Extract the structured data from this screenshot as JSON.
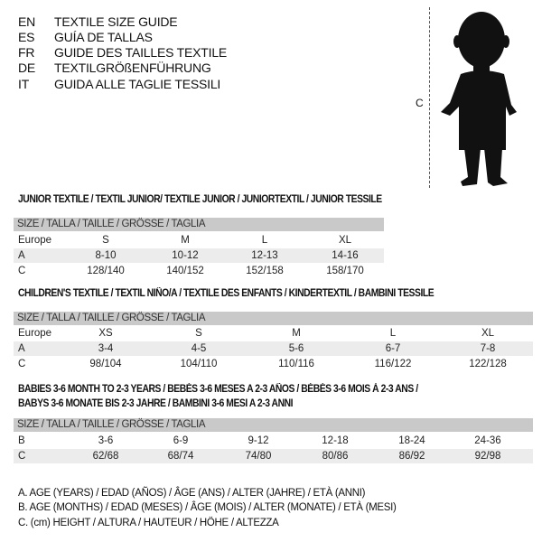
{
  "header_lines": [
    {
      "code": "EN",
      "text": "TEXTILE SIZE GUIDE"
    },
    {
      "code": "ES",
      "text": "GUÍA DE TALLAS"
    },
    {
      "code": "FR",
      "text": "GUIDE DES TAILLES TEXTILE"
    },
    {
      "code": "DE",
      "text": "TEXTILGRÖßENFÜHRUNG"
    },
    {
      "code": "IT",
      "text": "GUIDA ALLE TAGLIE TESSILI"
    }
  ],
  "figure": {
    "height_label": "C",
    "icon": "child-silhouette"
  },
  "junior": {
    "title": "JUNIOR TEXTILE / TEXTIL JUNIOR/ TEXTILE JUNIOR / JUNIORTEXTIL / JUNIOR TESSILE",
    "header": "SIZE / TALLA / TAILLE / GRÖSSE / TAGLIA",
    "rows": [
      {
        "label": "Europe",
        "cells": [
          "S",
          "M",
          "L",
          "XL"
        ]
      },
      {
        "label": "A",
        "cells": [
          "8-10",
          "10-12",
          "12-13",
          "14-16"
        ]
      },
      {
        "label": "C",
        "cells": [
          "128/140",
          "140/152",
          "152/158",
          "158/170"
        ]
      }
    ]
  },
  "children": {
    "title": "CHILDREN'S TEXTILE / TEXTIL NIÑO/A / TEXTILE DES ENFANTS / KINDERTEXTIL / BAMBINI TESSILE",
    "header": "SIZE / TALLA / TAILLE / GRÖSSE / TAGLIA",
    "rows": [
      {
        "label": "Europe",
        "cells": [
          "XS",
          "S",
          "M",
          "L",
          "XL"
        ]
      },
      {
        "label": "A",
        "cells": [
          "3-4",
          "4-5",
          "5-6",
          "6-7",
          "7-8"
        ]
      },
      {
        "label": "C",
        "cells": [
          "98/104",
          "104/110",
          "110/116",
          "116/122",
          "122/128"
        ]
      }
    ]
  },
  "babies": {
    "title_line1": "BABIES 3-6 MONTH TO 2-3 YEARS / BEBÉS 3-6 MESES A 2-3 AÑOS / BÉBÉS 3-6 MOIS À 2-3 ANS /",
    "title_line2": "BABYS 3-6 MONATE BIS 2-3 JAHRE / BAMBINI 3-6 MESI A 2-3 ANNI",
    "header": "SIZE / TALLA / TAILLE / GRÖSSE / TAGLIA",
    "rows": [
      {
        "label": "B",
        "cells": [
          "3-6",
          "6-9",
          "9-12",
          "12-18",
          "18-24",
          "24-36"
        ]
      },
      {
        "label": "C",
        "cells": [
          "62/68",
          "68/74",
          "74/80",
          "80/86",
          "86/92",
          "92/98"
        ]
      }
    ]
  },
  "legend": [
    "A. AGE (YEARS) / EDAD (AÑOS) / ÂGE (ANS) / ALTER (JAHRE) / ETÀ (ANNI)",
    "B. AGE (MONTHS) / EDAD (MESES) / ÂGE (MOIS) / ALTER (MONATE) / ETÀ (MESI)",
    "C. (cm) HEIGHT / ALTURA / HAUTEUR / HÖHE / ALTEZZA"
  ],
  "colors": {
    "header_bar": "#c9c9c9",
    "shaded_row": "#ececec"
  }
}
